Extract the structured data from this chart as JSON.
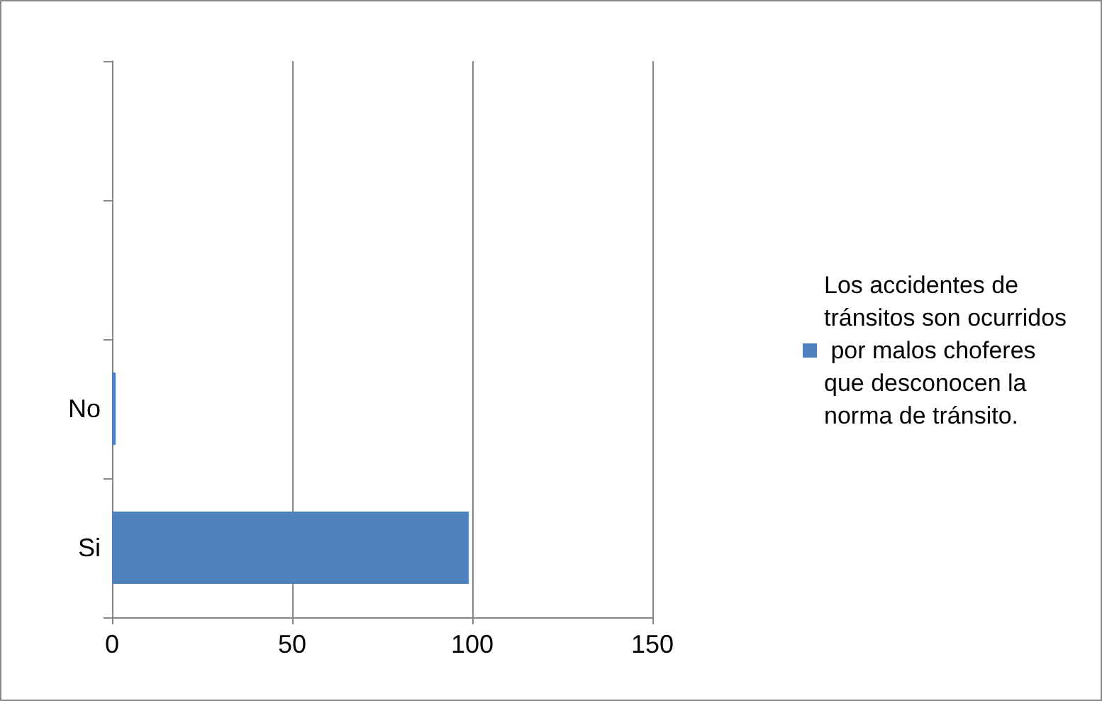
{
  "chart_data": {
    "type": "bar",
    "orientation": "horizontal",
    "categories": [
      null,
      null,
      "No",
      "Si"
    ],
    "series": [
      {
        "name": "Los accidentes de tránsitos son ocurridos por malos choferes que desconocen la norma de tránsito.",
        "color": "#4f81bd",
        "values": [
          null,
          null,
          1,
          99
        ]
      }
    ],
    "xlim": [
      0,
      150
    ],
    "xticks": [
      0,
      50,
      100,
      150
    ],
    "grid": "x",
    "legend": "right"
  }
}
